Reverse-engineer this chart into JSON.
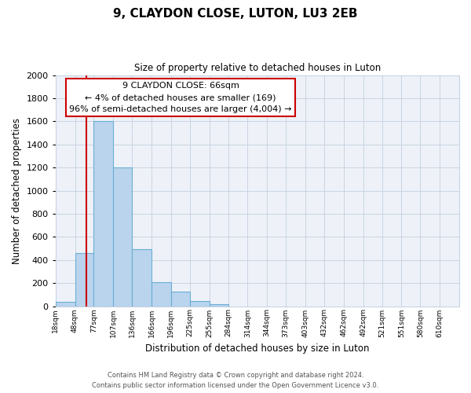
{
  "title": "9, CLAYDON CLOSE, LUTON, LU3 2EB",
  "subtitle": "Size of property relative to detached houses in Luton",
  "xlabel": "Distribution of detached houses by size in Luton",
  "ylabel": "Number of detached properties",
  "bar_values": [
    35,
    460,
    1600,
    1200,
    490,
    210,
    125,
    45,
    20
  ],
  "bin_left_edges": [
    18,
    48,
    77,
    107,
    136,
    166,
    196,
    225,
    255,
    284
  ],
  "x_tick_labels": [
    "18sqm",
    "48sqm",
    "77sqm",
    "107sqm",
    "136sqm",
    "166sqm",
    "196sqm",
    "225sqm",
    "255sqm",
    "284sqm",
    "314sqm",
    "344sqm",
    "373sqm",
    "403sqm",
    "432sqm",
    "462sqm",
    "492sqm",
    "521sqm",
    "551sqm",
    "580sqm",
    "610sqm"
  ],
  "x_tick_values": [
    18,
    48,
    77,
    107,
    136,
    166,
    196,
    225,
    255,
    284,
    314,
    344,
    373,
    403,
    432,
    462,
    492,
    521,
    551,
    580,
    610
  ],
  "bar_color": "#bad4ed",
  "bar_edge_color": "#6aaed6",
  "red_line_x": 66,
  "annotation_title": "9 CLAYDON CLOSE: 66sqm",
  "annotation_line1": "← 4% of detached houses are smaller (169)",
  "annotation_line2": "96% of semi-detached houses are larger (4,004) →",
  "annotation_box_edge": "#cc0000",
  "red_line_color": "#cc0000",
  "ylim": [
    0,
    2000
  ],
  "yticks": [
    0,
    200,
    400,
    600,
    800,
    1000,
    1200,
    1400,
    1600,
    1800,
    2000
  ],
  "footer1": "Contains HM Land Registry data © Crown copyright and database right 2024.",
  "footer2": "Contains public sector information licensed under the Open Government Licence v3.0.",
  "bg_color": "#ffffff",
  "grid_color": "#c8d4e3",
  "plot_bg_color": "#eef2f8"
}
